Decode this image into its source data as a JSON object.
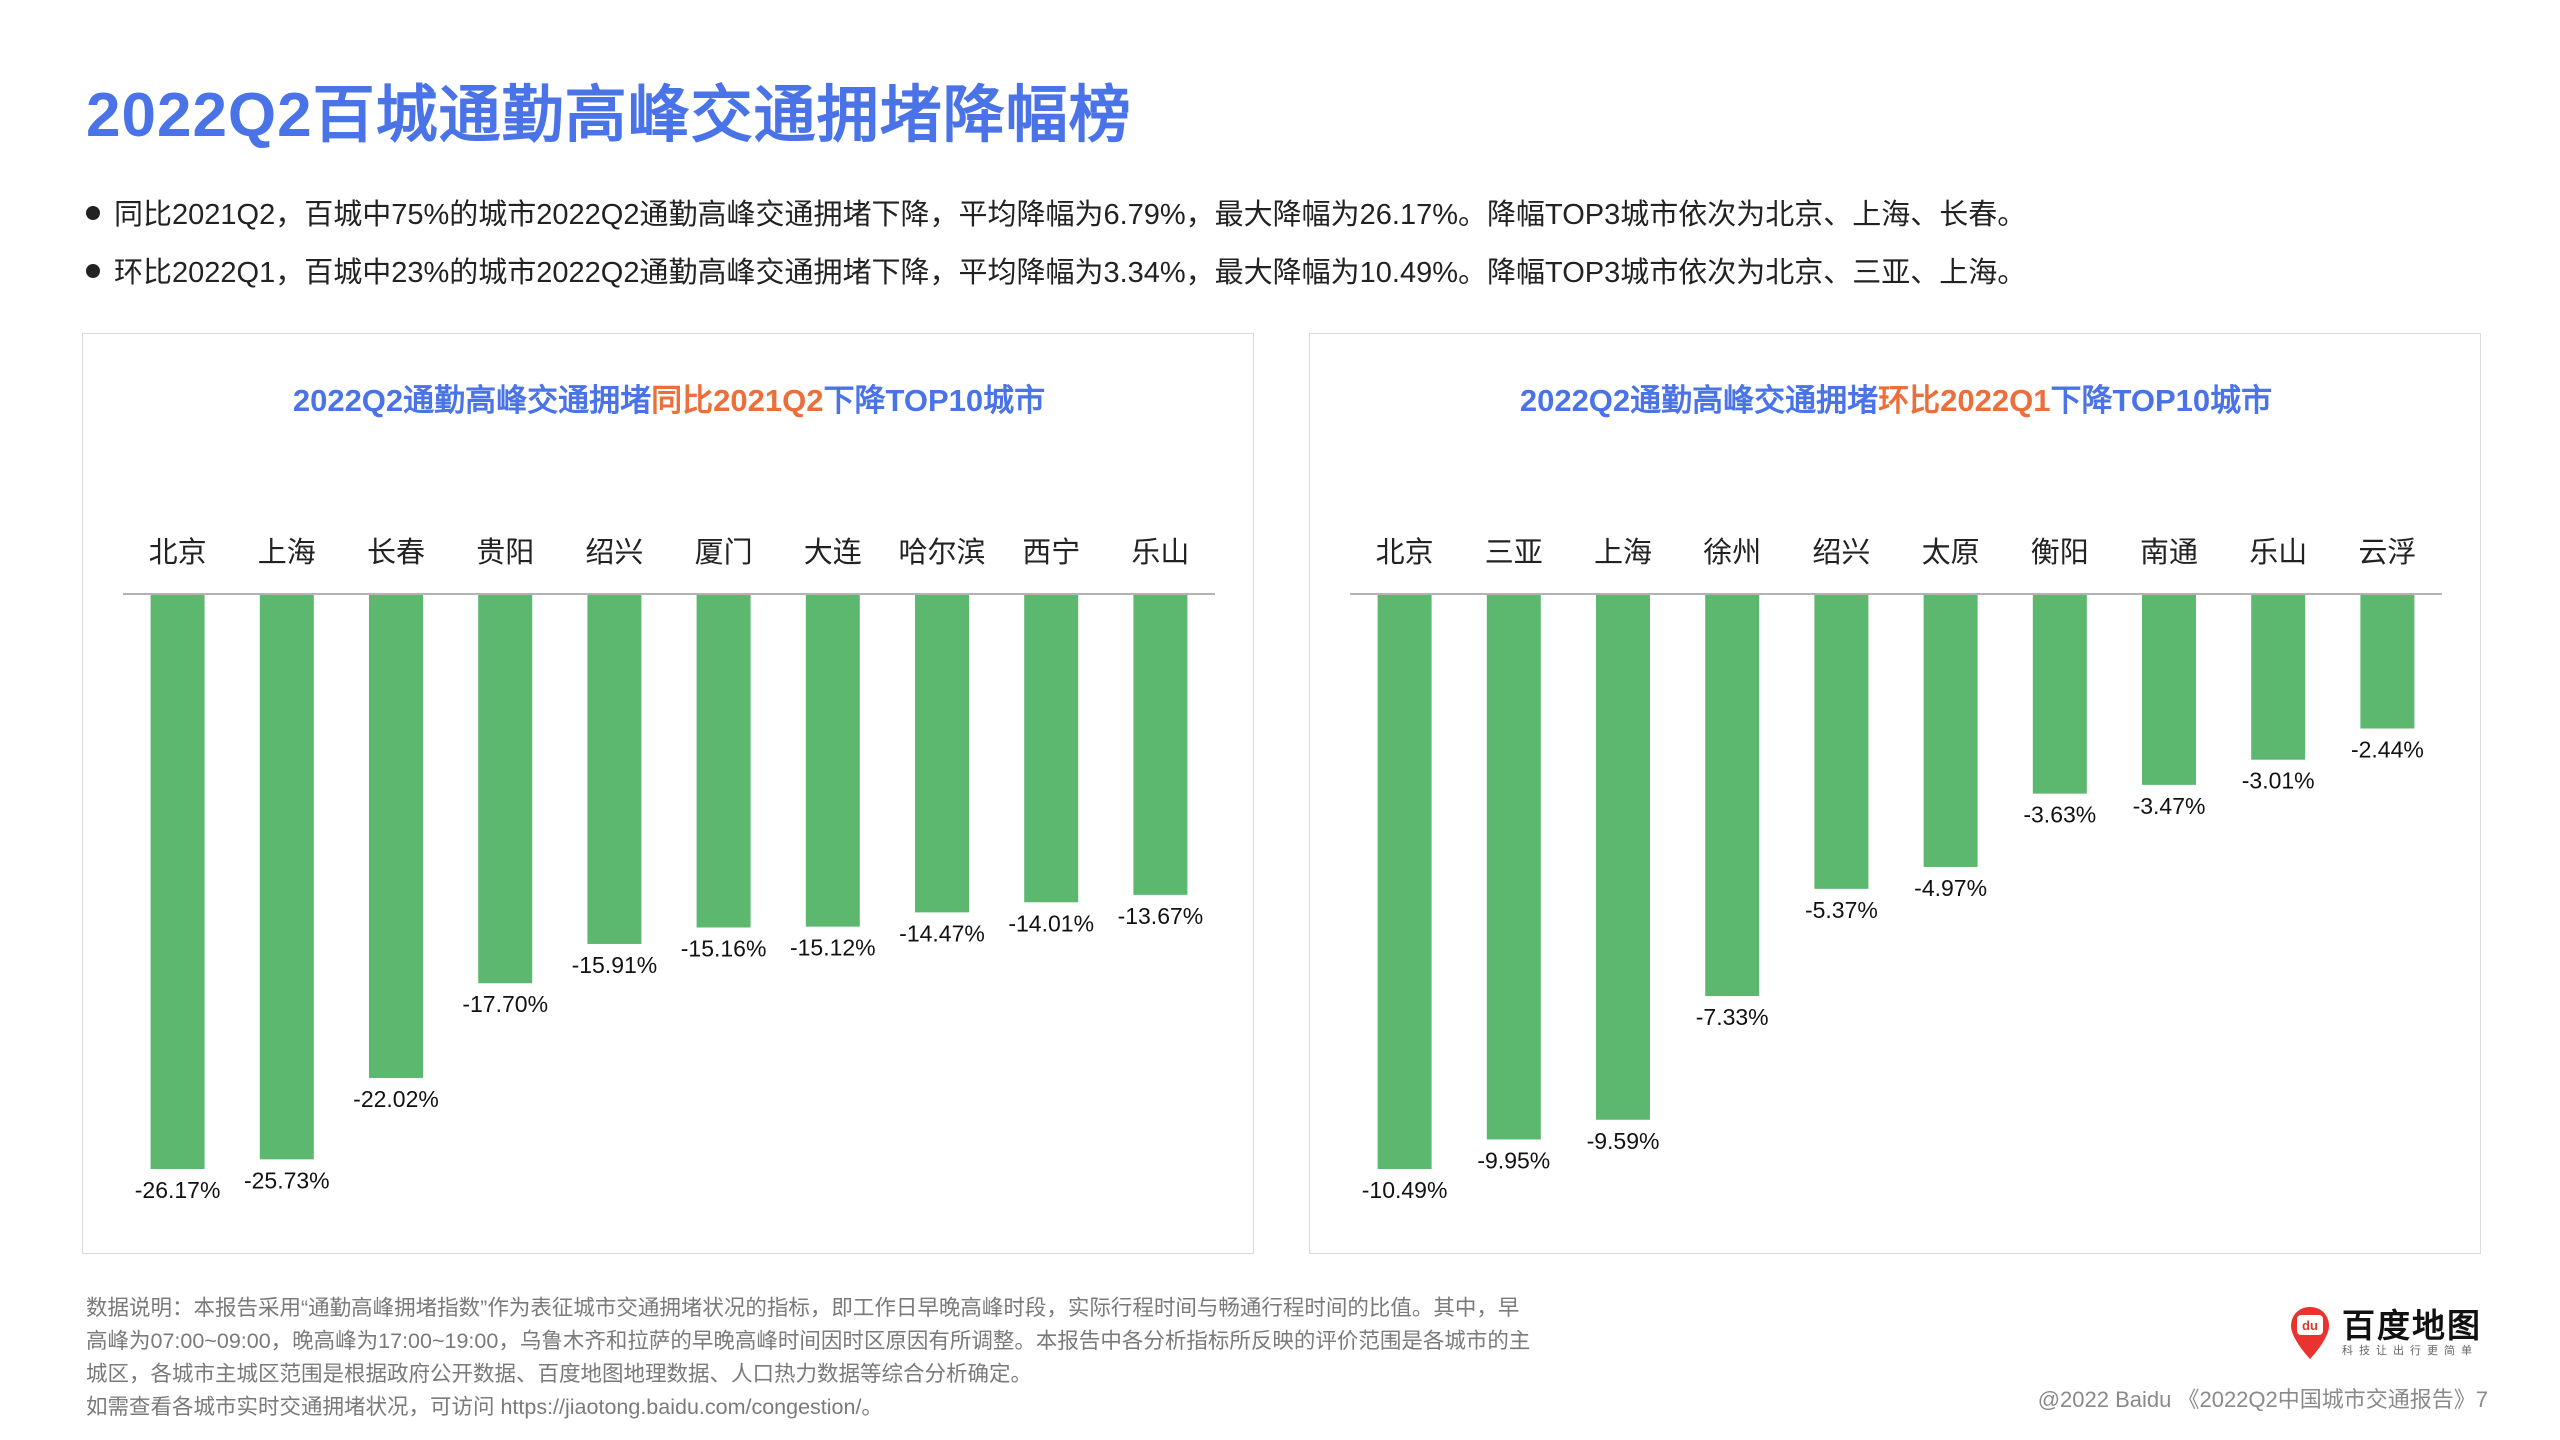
{
  "page": {
    "title": "2022Q2百城通勤高峰交通拥堵降幅榜",
    "bullets": [
      "同比2021Q2，百城中75%的城市2022Q2通勤高峰交通拥堵下降，平均降幅为6.79%，最大降幅为26.17%。降幅TOP3城市依次为北京、上海、长春。",
      "环比2022Q1，百城中23%的城市2022Q2通勤高峰交通拥堵下降，平均降幅为3.34%，最大降幅为10.49%。降幅TOP3城市依次为北京、三亚、上海。"
    ],
    "footnote_lines": [
      "数据说明：本报告采用“通勤高峰拥堵指数”作为表征城市交通拥堵状况的指标，即工作日早晚高峰时段，实际行程时间与畅通行程时间的比值。其中，早",
      "高峰为07:00~09:00，晚高峰为17:00~19:00，乌鲁木齐和拉萨的早晚高峰时间因时区原因有所调整。本报告中各分析指标所反映的评价范围是各城市的主",
      "城区，各城市主城区范围是根据政府公开数据、百度地图地理数据、人口热力数据等综合分析确定。",
      "如需查看各城市实时交通拥堵状况，可访问 https://jiaotong.baidu.com/congestion/。"
    ],
    "logo_name": "百度地图",
    "logo_slogan": "科技让出行更简单",
    "logo_mark_text": "du",
    "copyright": "@2022 Baidu 《2022Q2中国城市交通报告》7"
  },
  "colors": {
    "title_blue": "#4b73e8",
    "accent_orange": "#ec6f3b",
    "bar_green": "#5cb86f",
    "axis_gray": "#9a9a9a",
    "logo_red": "#e8332f"
  },
  "chart_data": [
    {
      "type": "bar",
      "title_parts": [
        "2022Q2通勤高峰交通拥堵",
        "同比2021Q2",
        "下降TOP10城市"
      ],
      "categories": [
        "北京",
        "上海",
        "长春",
        "贵阳",
        "绍兴",
        "厦门",
        "大连",
        "哈尔滨",
        "西宁",
        "乐山"
      ],
      "values": [
        -26.17,
        -25.73,
        -22.02,
        -17.7,
        -15.91,
        -15.16,
        -15.12,
        -14.47,
        -14.01,
        -13.67
      ],
      "value_labels": [
        "-26.17%",
        "-25.73%",
        "-22.02%",
        "-17.70%",
        "-15.91%",
        "-15.16%",
        "-15.12%",
        "-14.47%",
        "-14.01%",
        "-13.67%"
      ],
      "ylim": [
        -26.17,
        0
      ],
      "axis_position": "top"
    },
    {
      "type": "bar",
      "title_parts": [
        "2022Q2通勤高峰交通拥堵",
        "环比2022Q1",
        "下降TOP10城市"
      ],
      "categories": [
        "北京",
        "三亚",
        "上海",
        "徐州",
        "绍兴",
        "太原",
        "衡阳",
        "南通",
        "乐山",
        "云浮"
      ],
      "values": [
        -10.49,
        -9.95,
        -9.59,
        -7.33,
        -5.37,
        -4.97,
        -3.63,
        -3.47,
        -3.01,
        -2.44
      ],
      "value_labels": [
        "-10.49%",
        "-9.95%",
        "-9.59%",
        "-7.33%",
        "-5.37%",
        "-4.97%",
        "-3.63%",
        "-3.47%",
        "-3.01%",
        "-2.44%"
      ],
      "ylim": [
        -10.49,
        0
      ],
      "axis_position": "top"
    }
  ]
}
